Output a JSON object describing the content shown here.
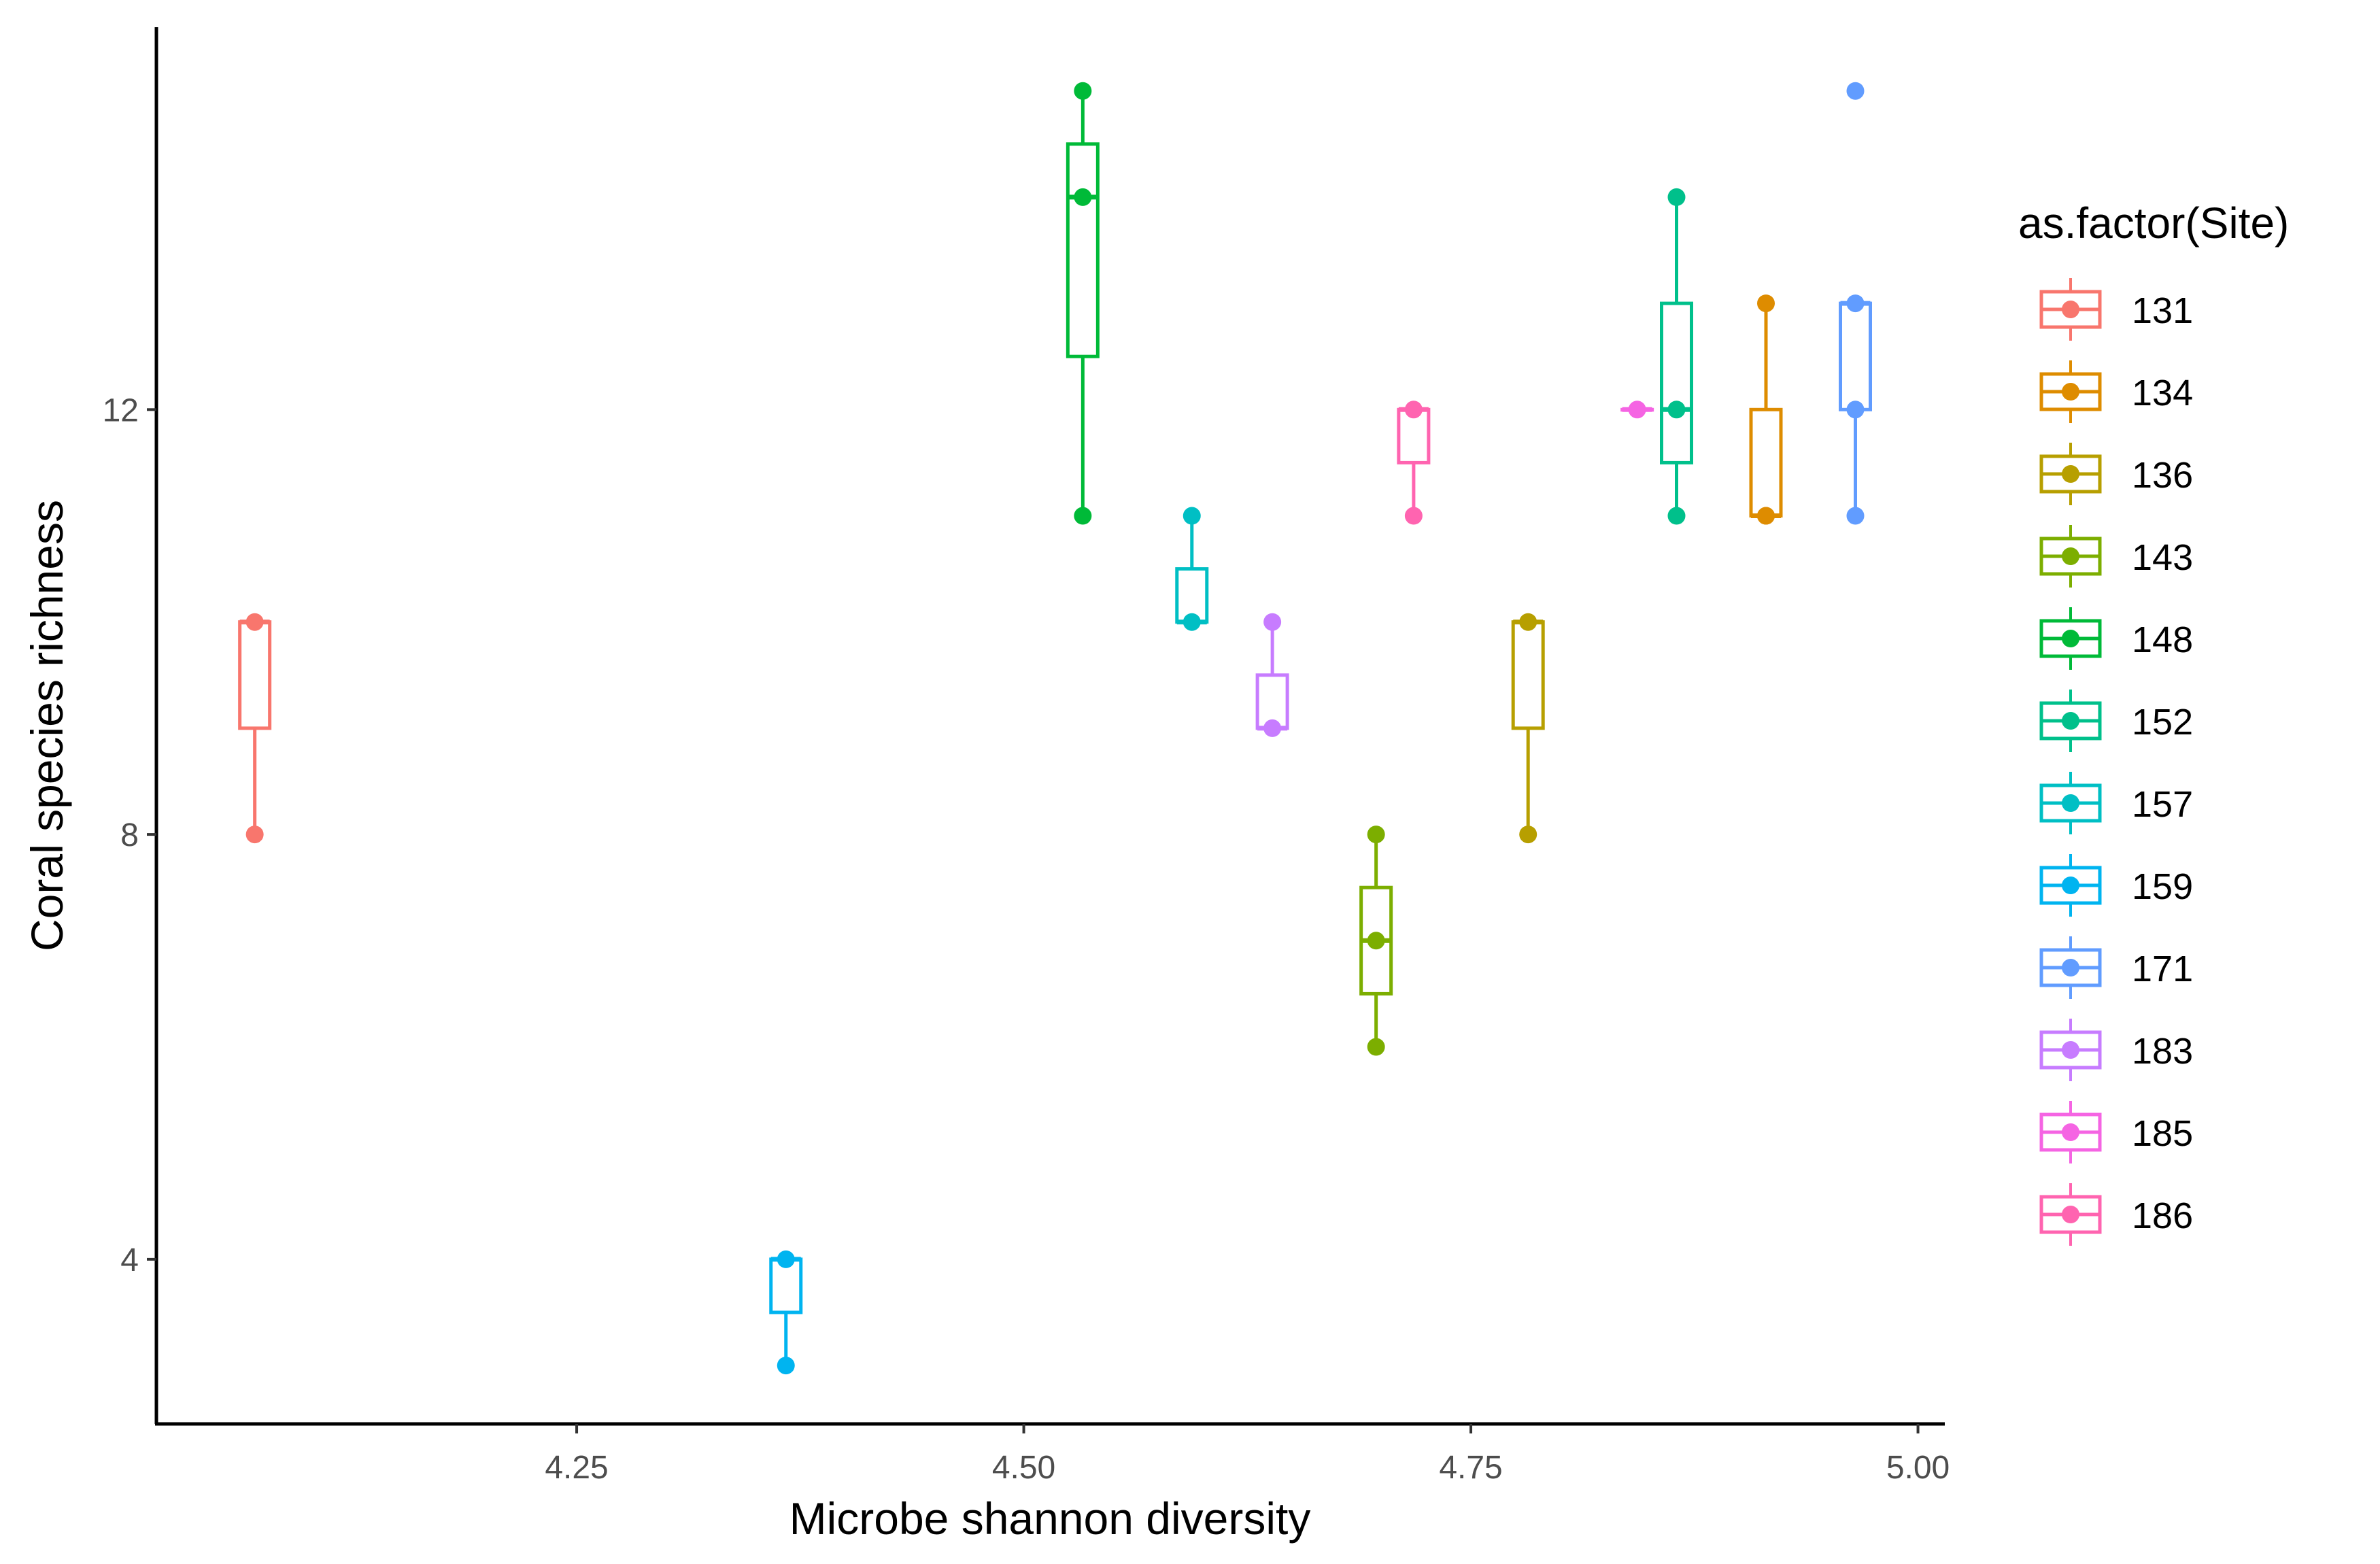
{
  "chart_data": {
    "type": "boxplot",
    "xlabel": "Microbe shannon diversity",
    "ylabel": "Coral species richness",
    "xlim": [
      4.015,
      5.015
    ],
    "ylim": [
      2.45,
      15.6
    ],
    "x_ticks": [
      "4.25",
      "4.50",
      "4.75",
      "5.00"
    ],
    "y_ticks": [
      "4",
      "8",
      "12"
    ],
    "grid": false,
    "legend": {
      "title": "as.factor(Site)",
      "position": "right"
    },
    "series": [
      {
        "name": "131",
        "color": "#F8766D",
        "x": 4.07,
        "min": 8,
        "q1": 9,
        "median": 10,
        "q3": 10,
        "max": 10,
        "points": [
          10,
          8
        ]
      },
      {
        "name": "134",
        "color": "#DE8C00",
        "x": 4.915,
        "min": 11,
        "q1": 11,
        "median": 11,
        "q3": 12,
        "max": 13,
        "points": [
          13,
          11,
          11
        ]
      },
      {
        "name": "136",
        "color": "#B79F00",
        "x": 4.782,
        "min": 8,
        "q1": 9,
        "median": 10,
        "q3": 10,
        "max": 10,
        "points": [
          10,
          8
        ]
      },
      {
        "name": "143",
        "color": "#7CAE00",
        "x": 4.697,
        "min": 6,
        "q1": 6.5,
        "median": 7,
        "q3": 7.5,
        "max": 8,
        "points": [
          8,
          7,
          6
        ]
      },
      {
        "name": "148",
        "color": "#00BA38",
        "x": 4.533,
        "min": 11,
        "q1": 12.5,
        "median": 14,
        "q3": 14.5,
        "max": 15,
        "points": [
          15,
          14,
          11
        ]
      },
      {
        "name": "152",
        "color": "#00C08B",
        "x": 4.865,
        "min": 11,
        "q1": 11.5,
        "median": 12,
        "q3": 13,
        "max": 14,
        "points": [
          14,
          12,
          11
        ]
      },
      {
        "name": "157",
        "color": "#00BFC4",
        "x": 4.594,
        "min": 10,
        "q1": 10,
        "median": 10,
        "q3": 10.5,
        "max": 11,
        "points": [
          11,
          10
        ]
      },
      {
        "name": "159",
        "color": "#00B4F0",
        "x": 4.367,
        "min": 3,
        "q1": 3.5,
        "median": 4,
        "q3": 4,
        "max": 4,
        "points": [
          4,
          3
        ]
      },
      {
        "name": "171",
        "color": "#619CFF",
        "x": 4.965,
        "min": 11,
        "q1": 12,
        "median": 13,
        "q3": 13,
        "max": 13,
        "points": [
          15,
          13,
          12,
          11
        ]
      },
      {
        "name": "183",
        "color": "#C77CFF",
        "x": 4.639,
        "min": 9,
        "q1": 9,
        "median": 9,
        "q3": 9.5,
        "max": 10,
        "points": [
          10,
          9
        ]
      },
      {
        "name": "185",
        "color": "#F564E3",
        "x": 4.843,
        "min": 12,
        "q1": 12,
        "median": 12,
        "q3": 12,
        "max": 12,
        "points": [
          12
        ]
      },
      {
        "name": "186",
        "color": "#FF64B0",
        "x": 4.718,
        "min": 11,
        "q1": 11.5,
        "median": 12,
        "q3": 12,
        "max": 12,
        "points": [
          12,
          11
        ]
      }
    ]
  }
}
